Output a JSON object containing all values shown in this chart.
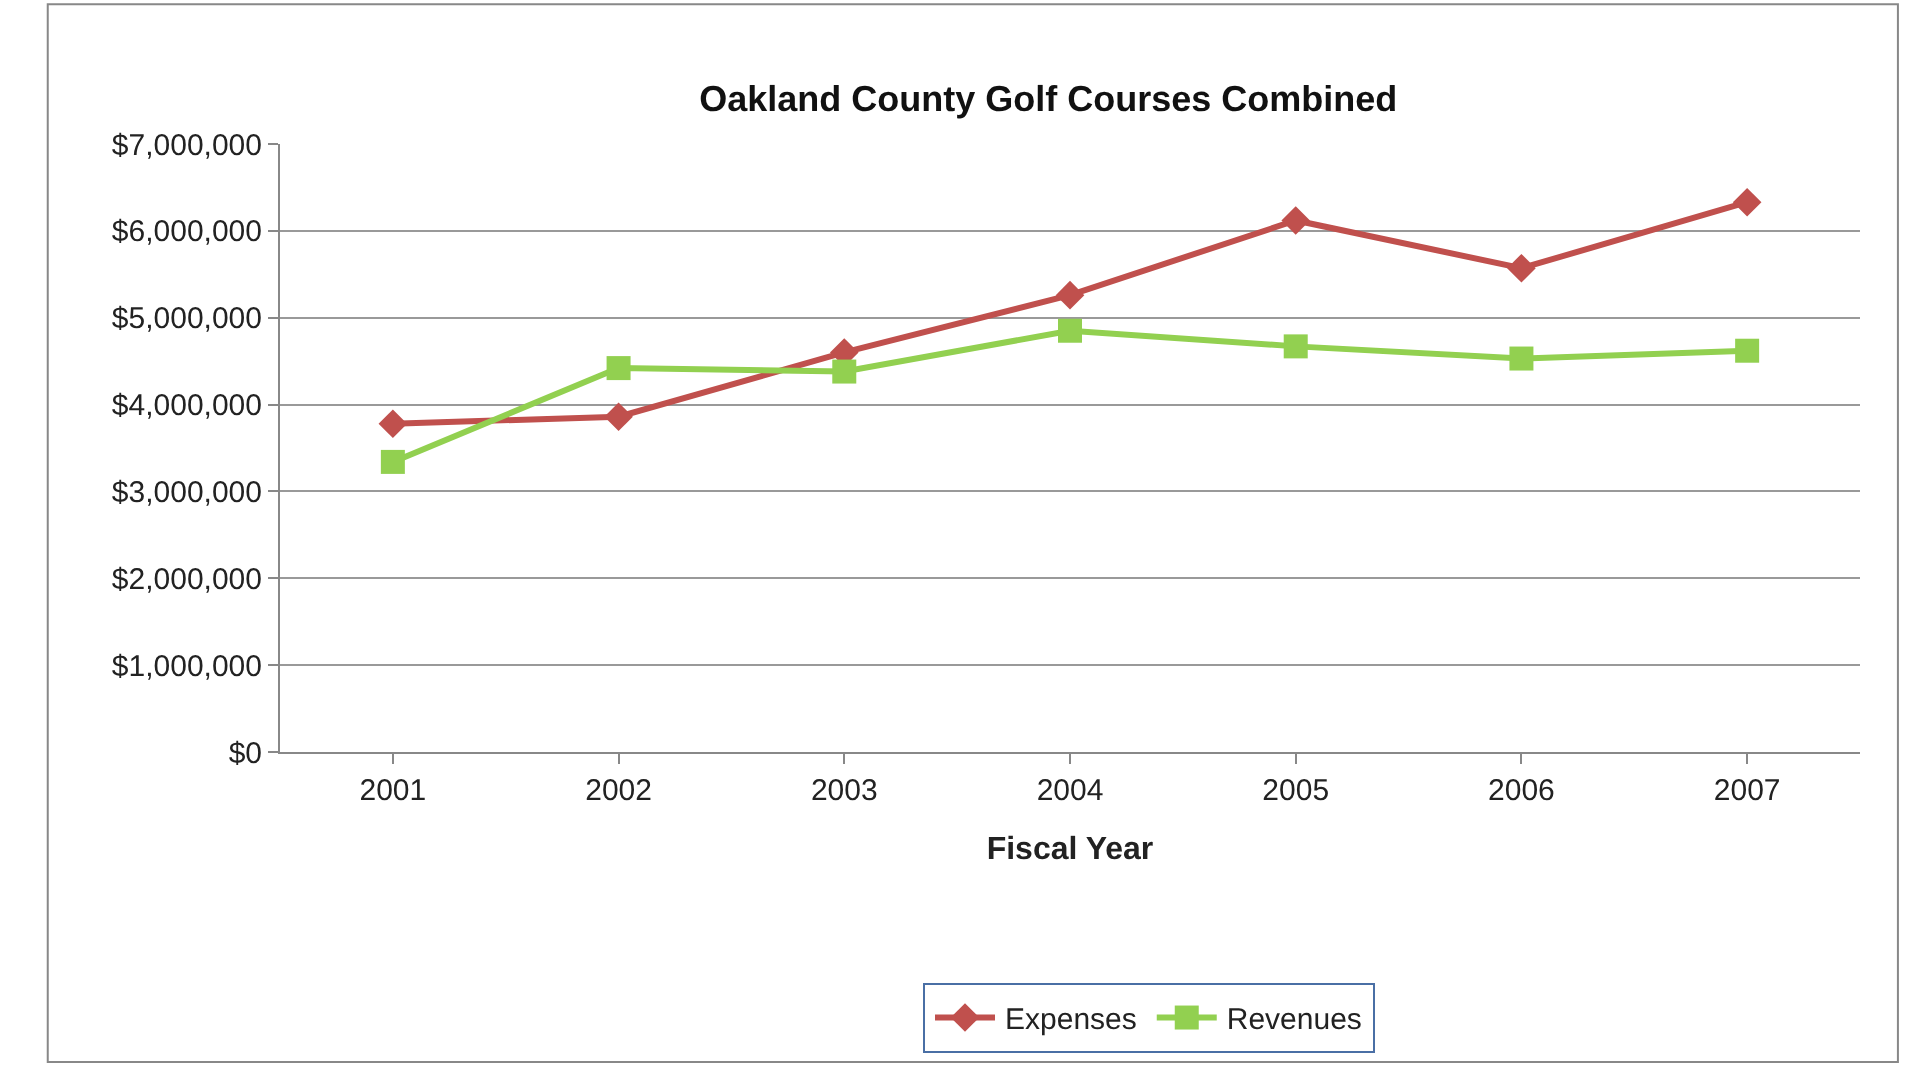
{
  "chart_data": {
    "type": "line",
    "title": "Oakland County Golf Courses Combined",
    "xlabel": "Fiscal Year",
    "categories": [
      "2001",
      "2002",
      "2003",
      "2004",
      "2005",
      "2006",
      "2007"
    ],
    "series": [
      {
        "name": "Expenses",
        "color": "#c0504d",
        "marker": "diamond",
        "values": [
          3780000,
          3860000,
          4600000,
          5260000,
          6120000,
          5570000,
          6330000
        ]
      },
      {
        "name": "Revenues",
        "color": "#92d050",
        "marker": "square",
        "values": [
          3340000,
          4420000,
          4380000,
          4850000,
          4670000,
          4530000,
          4620000
        ]
      }
    ],
    "ylim": [
      0,
      7000000
    ],
    "yticks": [
      {
        "value": 0,
        "label": "$0"
      },
      {
        "value": 1000000,
        "label": "$1,000,000"
      },
      {
        "value": 2000000,
        "label": "$2,000,000"
      },
      {
        "value": 3000000,
        "label": "$3,000,000"
      },
      {
        "value": 4000000,
        "label": "$4,000,000"
      },
      {
        "value": 5000000,
        "label": "$5,000,000"
      },
      {
        "value": 6000000,
        "label": "$6,000,000"
      },
      {
        "value": 7000000,
        "label": "$7,000,000"
      }
    ],
    "grid": "y",
    "legend": "bottom",
    "line_style": "solid"
  }
}
